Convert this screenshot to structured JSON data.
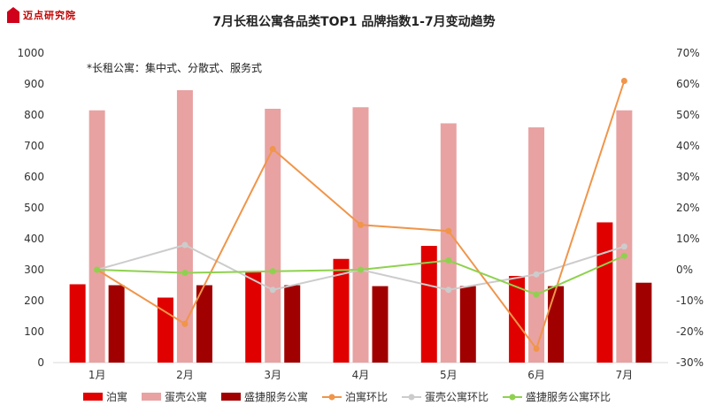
{
  "header": {
    "logo_text": "迈点研究院"
  },
  "chart_data": {
    "type": "bar",
    "title": "7月长租公寓各品类TOP1 品牌指数1-7月变动趋势",
    "note": "*长租公寓：集中式、分散式、服务式",
    "categories": [
      "1月",
      "2月",
      "3月",
      "4月",
      "5月",
      "6月",
      "7月"
    ],
    "y_left": {
      "min": 0,
      "max": 1000,
      "step": 100,
      "ticks": [
        "0",
        "100",
        "200",
        "300",
        "400",
        "500",
        "600",
        "700",
        "800",
        "900",
        "1000"
      ]
    },
    "y_right": {
      "min": -30,
      "max": 70,
      "step": 10,
      "ticks": [
        "-30%",
        "-20%",
        "-10%",
        "0%",
        "10%",
        "20%",
        "30%",
        "40%",
        "50%",
        "60%",
        "70%"
      ]
    },
    "bar_series": [
      {
        "name": "泊寓",
        "color": "#e00000",
        "values": [
          253,
          210,
          293,
          335,
          377,
          280,
          453
        ]
      },
      {
        "name": "蛋壳公寓",
        "color": "#e8a2a2",
        "values": [
          815,
          880,
          820,
          825,
          773,
          760,
          815
        ]
      },
      {
        "name": "盛捷服务公寓",
        "color": "#a00000",
        "values": [
          250,
          250,
          250,
          247,
          247,
          247,
          258
        ]
      }
    ],
    "line_series": [
      {
        "name": "泊寓环比",
        "color": "#f0954a",
        "values": [
          0,
          -17.5,
          39,
          14.5,
          12.5,
          -25.5,
          61
        ]
      },
      {
        "name": "蛋壳公寓环比",
        "color": "#cccccc",
        "values": [
          0,
          8,
          -6.5,
          0,
          -6.5,
          -1.5,
          7.5
        ]
      },
      {
        "name": "盛捷服务公寓环比",
        "color": "#8fd14f",
        "values": [
          0,
          -1,
          -0.5,
          0,
          3,
          -8,
          4.5
        ]
      }
    ],
    "legend_position": "bottom",
    "grid": false
  }
}
